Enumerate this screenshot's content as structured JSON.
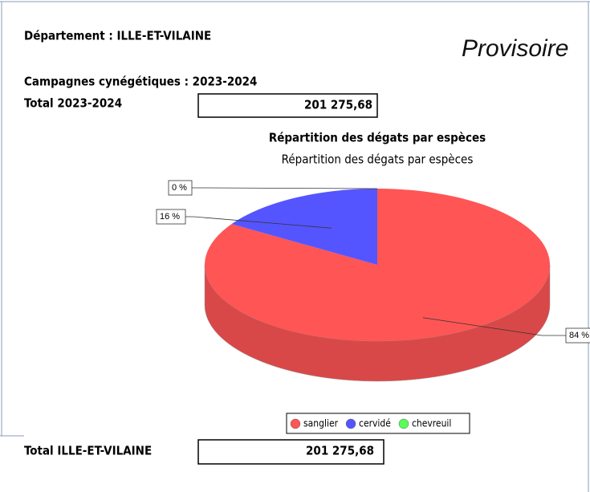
{
  "departement": "Département : ILLE-ET-VILAINE",
  "provisoire": "Provisoire",
  "campagnes": "Campagnes cynégétiques : 2023-2024",
  "total_label": "Total 2023-2024",
  "total_value": "201 275,68",
  "chart_data": {
    "type": "pie",
    "title": "Répartition des dégats par espèces",
    "subtitle": "Répartition des dégats par espèces",
    "categories": [
      "sanglier",
      "cervidé",
      "chevreuil"
    ],
    "values": [
      84,
      16,
      0
    ],
    "value_labels": [
      "84 %",
      "16 %",
      "0 %"
    ],
    "colors": [
      "#ff5555",
      "#5555ff",
      "#55ff55"
    ]
  },
  "footer_label": "Total ILLE-ET-VILAINE",
  "footer_value": "201 275,68"
}
